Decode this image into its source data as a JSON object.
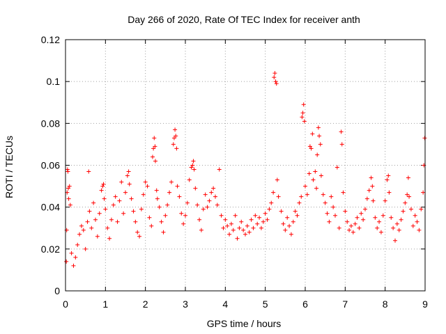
{
  "chart_data": {
    "type": "scatter",
    "title": "Day 266 of 2020, Rate Of TEC Index for receiver anth",
    "xlabel": "GPS time / hours",
    "ylabel": "ROTI / TECUs",
    "xlim": [
      0,
      9
    ],
    "ylim": [
      0,
      0.12
    ],
    "xticks": [
      0,
      1,
      2,
      3,
      4,
      5,
      6,
      7,
      8,
      9
    ],
    "xtick_labels": [
      "0",
      "1",
      "2",
      "3",
      "4",
      "5",
      "6",
      "7",
      "8",
      "9"
    ],
    "yticks": [
      0,
      0.02,
      0.04,
      0.06,
      0.08,
      0.1,
      0.12
    ],
    "ytick_labels": [
      "0",
      "0.02",
      "0.04",
      "0.06",
      "0.08",
      "0.1",
      "0.12"
    ],
    "grid": true,
    "marker": "+",
    "color": "#ff0000",
    "series": [
      {
        "name": "ROTI",
        "points": [
          [
            0.02,
            0.014
          ],
          [
            0.03,
            0.029
          ],
          [
            0.04,
            0.047
          ],
          [
            0.05,
            0.058
          ],
          [
            0.06,
            0.057
          ],
          [
            0.07,
            0.049
          ],
          [
            0.08,
            0.044
          ],
          [
            0.1,
            0.05
          ],
          [
            0.12,
            0.041
          ],
          [
            0.15,
            0.018
          ],
          [
            0.2,
            0.012
          ],
          [
            0.25,
            0.016
          ],
          [
            0.3,
            0.022
          ],
          [
            0.35,
            0.027
          ],
          [
            0.4,
            0.031
          ],
          [
            0.45,
            0.029
          ],
          [
            0.5,
            0.02
          ],
          [
            0.55,
            0.033
          ],
          [
            0.58,
            0.057
          ],
          [
            0.6,
            0.038
          ],
          [
            0.65,
            0.03
          ],
          [
            0.7,
            0.042
          ],
          [
            0.75,
            0.034
          ],
          [
            0.8,
            0.026
          ],
          [
            0.85,
            0.037
          ],
          [
            0.9,
            0.048
          ],
          [
            0.93,
            0.05
          ],
          [
            0.95,
            0.051
          ],
          [
            0.97,
            0.044
          ],
          [
            1.0,
            0.039
          ],
          [
            1.05,
            0.03
          ],
          [
            1.1,
            0.025
          ],
          [
            1.15,
            0.034
          ],
          [
            1.2,
            0.041
          ],
          [
            1.25,
            0.045
          ],
          [
            1.3,
            0.033
          ],
          [
            1.35,
            0.043
          ],
          [
            1.4,
            0.052
          ],
          [
            1.45,
            0.037
          ],
          [
            1.5,
            0.047
          ],
          [
            1.55,
            0.055
          ],
          [
            1.58,
            0.057
          ],
          [
            1.6,
            0.051
          ],
          [
            1.65,
            0.044
          ],
          [
            1.7,
            0.038
          ],
          [
            1.75,
            0.033
          ],
          [
            1.8,
            0.028
          ],
          [
            1.85,
            0.026
          ],
          [
            1.9,
            0.039
          ],
          [
            1.95,
            0.046
          ],
          [
            2.0,
            0.052
          ],
          [
            2.05,
            0.05
          ],
          [
            2.1,
            0.035
          ],
          [
            2.15,
            0.031
          ],
          [
            2.18,
            0.064
          ],
          [
            2.2,
            0.068
          ],
          [
            2.22,
            0.073
          ],
          [
            2.24,
            0.069
          ],
          [
            2.25,
            0.062
          ],
          [
            2.28,
            0.048
          ],
          [
            2.3,
            0.044
          ],
          [
            2.35,
            0.04
          ],
          [
            2.4,
            0.033
          ],
          [
            2.45,
            0.028
          ],
          [
            2.5,
            0.036
          ],
          [
            2.55,
            0.041
          ],
          [
            2.6,
            0.047
          ],
          [
            2.65,
            0.052
          ],
          [
            2.7,
            0.07
          ],
          [
            2.72,
            0.073
          ],
          [
            2.74,
            0.077
          ],
          [
            2.76,
            0.074
          ],
          [
            2.78,
            0.068
          ],
          [
            2.8,
            0.05
          ],
          [
            2.85,
            0.045
          ],
          [
            2.9,
            0.037
          ],
          [
            2.95,
            0.032
          ],
          [
            3.0,
            0.036
          ],
          [
            3.05,
            0.042
          ],
          [
            3.1,
            0.053
          ],
          [
            3.15,
            0.059
          ],
          [
            3.18,
            0.06
          ],
          [
            3.2,
            0.062
          ],
          [
            3.22,
            0.058
          ],
          [
            3.25,
            0.049
          ],
          [
            3.3,
            0.041
          ],
          [
            3.35,
            0.034
          ],
          [
            3.4,
            0.029
          ],
          [
            3.45,
            0.039
          ],
          [
            3.5,
            0.046
          ],
          [
            3.55,
            0.04
          ],
          [
            3.6,
            0.043
          ],
          [
            3.65,
            0.047
          ],
          [
            3.7,
            0.049
          ],
          [
            3.75,
            0.045
          ],
          [
            3.8,
            0.041
          ],
          [
            3.85,
            0.058
          ],
          [
            3.9,
            0.036
          ],
          [
            3.95,
            0.03
          ],
          [
            4.0,
            0.034
          ],
          [
            4.05,
            0.031
          ],
          [
            4.1,
            0.027
          ],
          [
            4.15,
            0.032
          ],
          [
            4.2,
            0.029
          ],
          [
            4.25,
            0.036
          ],
          [
            4.3,
            0.025
          ],
          [
            4.35,
            0.03
          ],
          [
            4.4,
            0.033
          ],
          [
            4.45,
            0.029
          ],
          [
            4.5,
            0.027
          ],
          [
            4.55,
            0.031
          ],
          [
            4.6,
            0.028
          ],
          [
            4.65,
            0.034
          ],
          [
            4.7,
            0.03
          ],
          [
            4.75,
            0.036
          ],
          [
            4.8,
            0.032
          ],
          [
            4.85,
            0.035
          ],
          [
            4.9,
            0.03
          ],
          [
            4.95,
            0.033
          ],
          [
            5.0,
            0.037
          ],
          [
            5.05,
            0.034
          ],
          [
            5.1,
            0.039
          ],
          [
            5.15,
            0.042
          ],
          [
            5.2,
            0.047
          ],
          [
            5.22,
            0.102
          ],
          [
            5.24,
            0.104
          ],
          [
            5.26,
            0.1
          ],
          [
            5.28,
            0.099
          ],
          [
            5.3,
            0.053
          ],
          [
            5.33,
            0.045
          ],
          [
            5.4,
            0.038
          ],
          [
            5.45,
            0.032
          ],
          [
            5.5,
            0.029
          ],
          [
            5.55,
            0.035
          ],
          [
            5.6,
            0.031
          ],
          [
            5.65,
            0.027
          ],
          [
            5.7,
            0.033
          ],
          [
            5.75,
            0.038
          ],
          [
            5.8,
            0.036
          ],
          [
            5.85,
            0.042
          ],
          [
            5.9,
            0.045
          ],
          [
            5.92,
            0.083
          ],
          [
            5.94,
            0.085
          ],
          [
            5.96,
            0.089
          ],
          [
            5.98,
            0.081
          ],
          [
            6.0,
            0.05
          ],
          [
            6.05,
            0.046
          ],
          [
            6.1,
            0.056
          ],
          [
            6.12,
            0.069
          ],
          [
            6.15,
            0.068
          ],
          [
            6.18,
            0.075
          ],
          [
            6.2,
            0.053
          ],
          [
            6.25,
            0.057
          ],
          [
            6.28,
            0.049
          ],
          [
            6.3,
            0.065
          ],
          [
            6.33,
            0.078
          ],
          [
            6.35,
            0.074
          ],
          [
            6.38,
            0.07
          ],
          [
            6.4,
            0.055
          ],
          [
            6.45,
            0.046
          ],
          [
            6.5,
            0.042
          ],
          [
            6.55,
            0.037
          ],
          [
            6.6,
            0.033
          ],
          [
            6.65,
            0.045
          ],
          [
            6.7,
            0.04
          ],
          [
            6.75,
            0.036
          ],
          [
            6.8,
            0.059
          ],
          [
            6.85,
            0.03
          ],
          [
            6.9,
            0.076
          ],
          [
            6.92,
            0.07
          ],
          [
            6.95,
            0.047
          ],
          [
            7.0,
            0.038
          ],
          [
            7.05,
            0.033
          ],
          [
            7.1,
            0.029
          ],
          [
            7.15,
            0.031
          ],
          [
            7.2,
            0.028
          ],
          [
            7.25,
            0.032
          ],
          [
            7.3,
            0.035
          ],
          [
            7.35,
            0.03
          ],
          [
            7.4,
            0.037
          ],
          [
            7.45,
            0.034
          ],
          [
            7.5,
            0.039
          ],
          [
            7.55,
            0.044
          ],
          [
            7.6,
            0.048
          ],
          [
            7.65,
            0.054
          ],
          [
            7.68,
            0.05
          ],
          [
            7.7,
            0.043
          ],
          [
            7.75,
            0.035
          ],
          [
            7.8,
            0.03
          ],
          [
            7.85,
            0.033
          ],
          [
            7.9,
            0.028
          ],
          [
            7.95,
            0.036
          ],
          [
            8.0,
            0.043
          ],
          [
            8.05,
            0.053
          ],
          [
            8.08,
            0.055
          ],
          [
            8.1,
            0.047
          ],
          [
            8.15,
            0.035
          ],
          [
            8.2,
            0.03
          ],
          [
            8.25,
            0.024
          ],
          [
            8.3,
            0.032
          ],
          [
            8.35,
            0.029
          ],
          [
            8.4,
            0.034
          ],
          [
            8.45,
            0.038
          ],
          [
            8.5,
            0.042
          ],
          [
            8.55,
            0.046
          ],
          [
            8.58,
            0.054
          ],
          [
            8.6,
            0.045
          ],
          [
            8.65,
            0.039
          ],
          [
            8.7,
            0.031
          ],
          [
            8.75,
            0.036
          ],
          [
            8.8,
            0.033
          ],
          [
            8.85,
            0.029
          ],
          [
            8.9,
            0.039
          ],
          [
            8.95,
            0.047
          ],
          [
            8.97,
            0.06
          ],
          [
            8.99,
            0.073
          ]
        ]
      }
    ]
  }
}
